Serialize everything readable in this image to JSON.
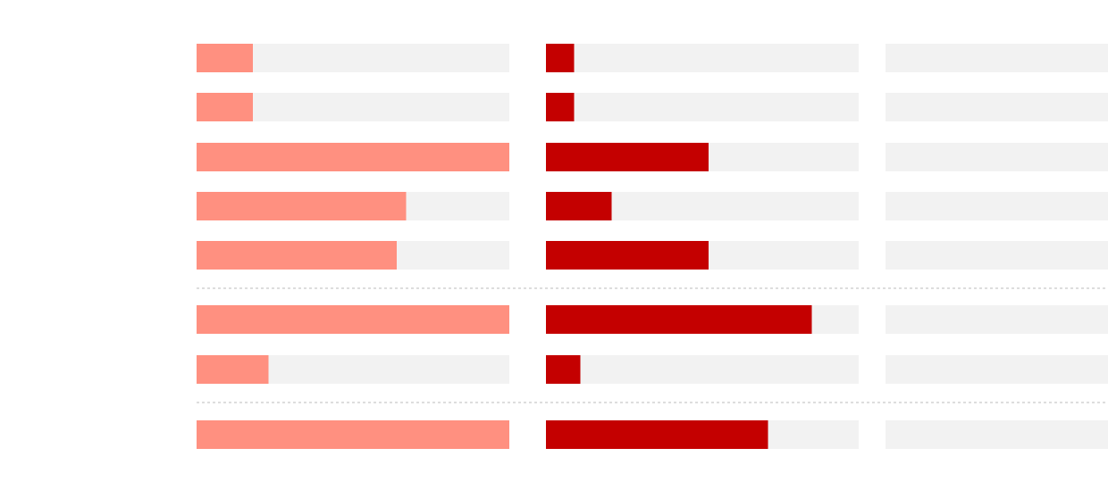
{
  "chart_data": {
    "type": "bar",
    "orientation": "horizontal",
    "categories": [
      null,
      null,
      null,
      null,
      null,
      null,
      null,
      null
    ],
    "xlim": [
      0,
      100
    ],
    "track_color": "#f2f2f2",
    "series": [
      {
        "color": "#ff9080",
        "values": [
          18,
          18,
          100,
          67,
          64,
          100,
          23,
          100
        ]
      },
      {
        "color": "#c40000",
        "values": [
          9,
          9,
          52,
          21,
          52,
          85,
          11,
          71
        ]
      }
    ]
  }
}
